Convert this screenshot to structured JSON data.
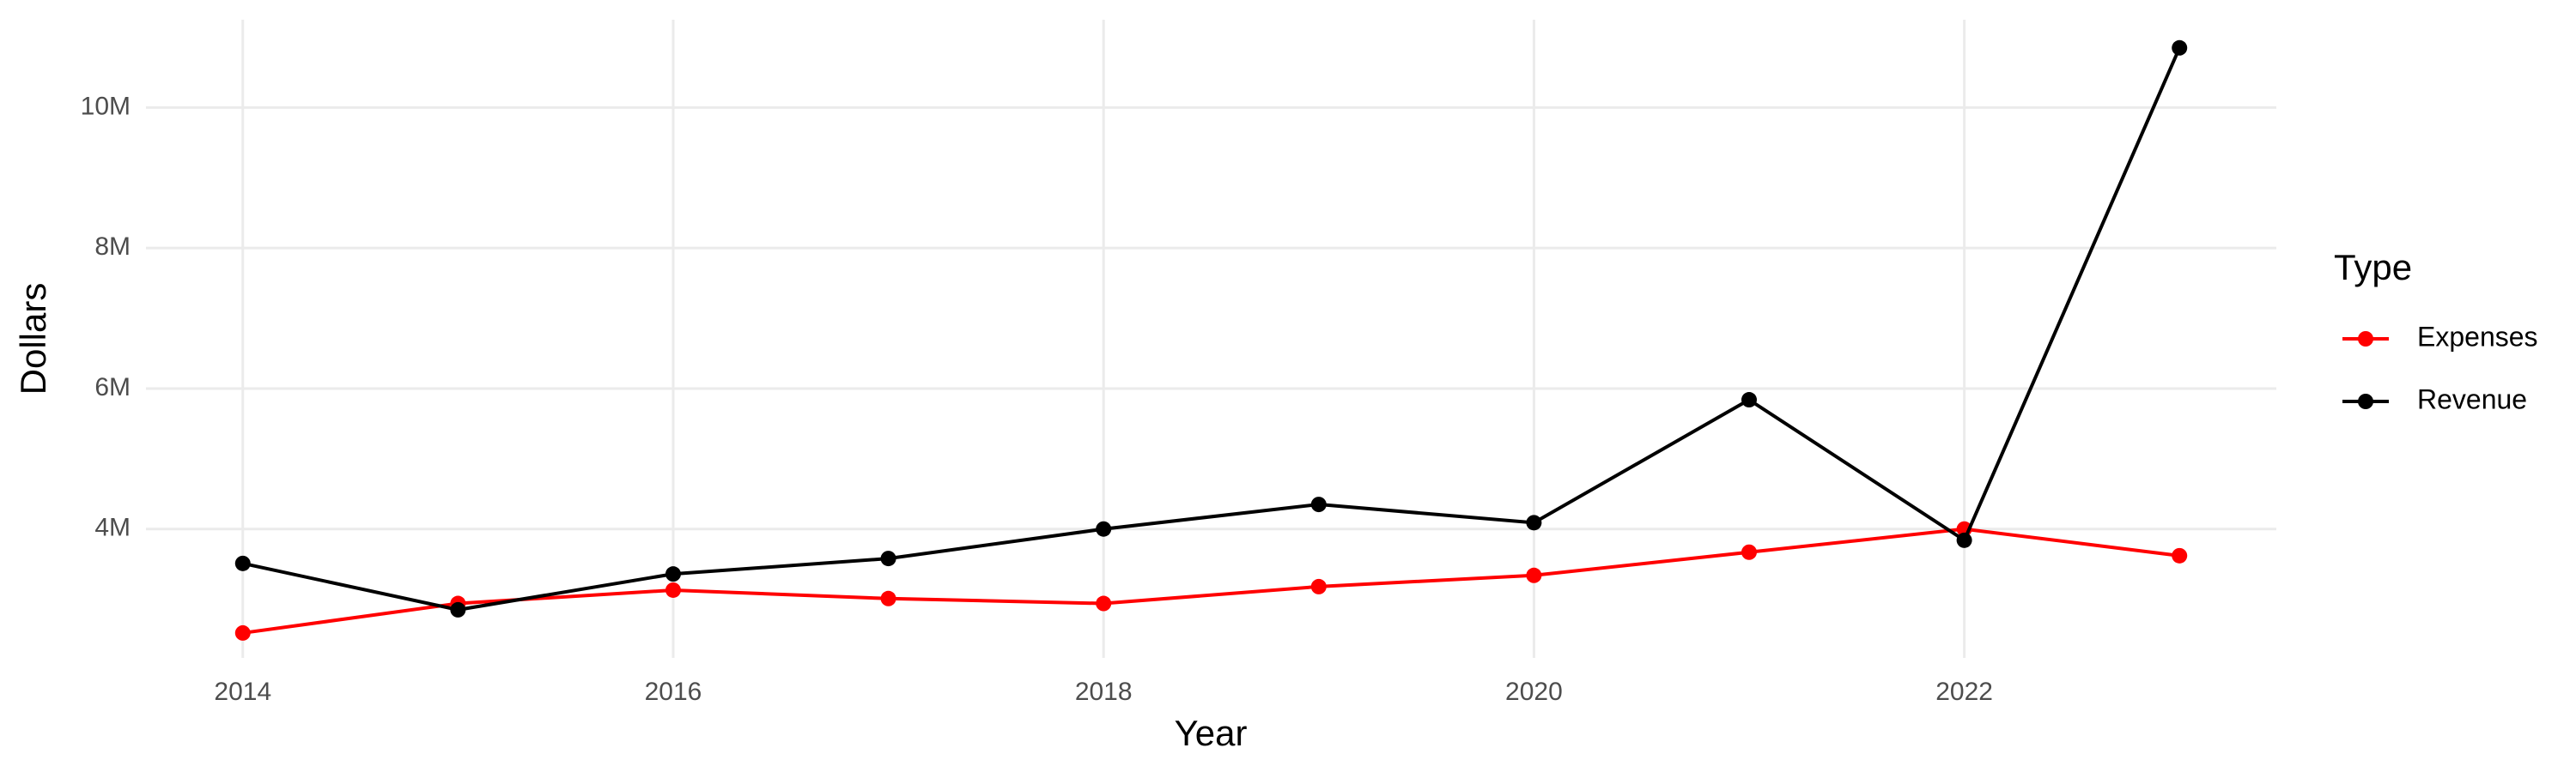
{
  "chart_data": {
    "type": "line",
    "x_label": "Year",
    "y_label": "Dollars",
    "legend_title": "Type",
    "x": [
      2014,
      2015,
      2016,
      2017,
      2018,
      2019,
      2020,
      2021,
      2022,
      2023
    ],
    "series": [
      {
        "name": "Expenses",
        "color": "#ff0000",
        "values": [
          2520000,
          2940000,
          3130000,
          3010000,
          2940000,
          3180000,
          3340000,
          3670000,
          4000000,
          3620000
        ]
      },
      {
        "name": "Revenue",
        "color": "#000000",
        "values": [
          3510000,
          2850000,
          3360000,
          3580000,
          4000000,
          4350000,
          4090000,
          5840000,
          3840000,
          10850000
        ]
      }
    ],
    "xlim": [
      2013.55,
      2023.45
    ],
    "xticks": [
      2014,
      2016,
      2018,
      2020,
      2022
    ],
    "ylim": [
      2165000,
      11250000
    ],
    "yticks": [
      {
        "value": 4000000,
        "label": "4M"
      },
      {
        "value": 6000000,
        "label": "6M"
      },
      {
        "value": 8000000,
        "label": "8M"
      },
      {
        "value": 10000000,
        "label": "10M"
      }
    ],
    "grid": true,
    "legend_position": "right"
  }
}
